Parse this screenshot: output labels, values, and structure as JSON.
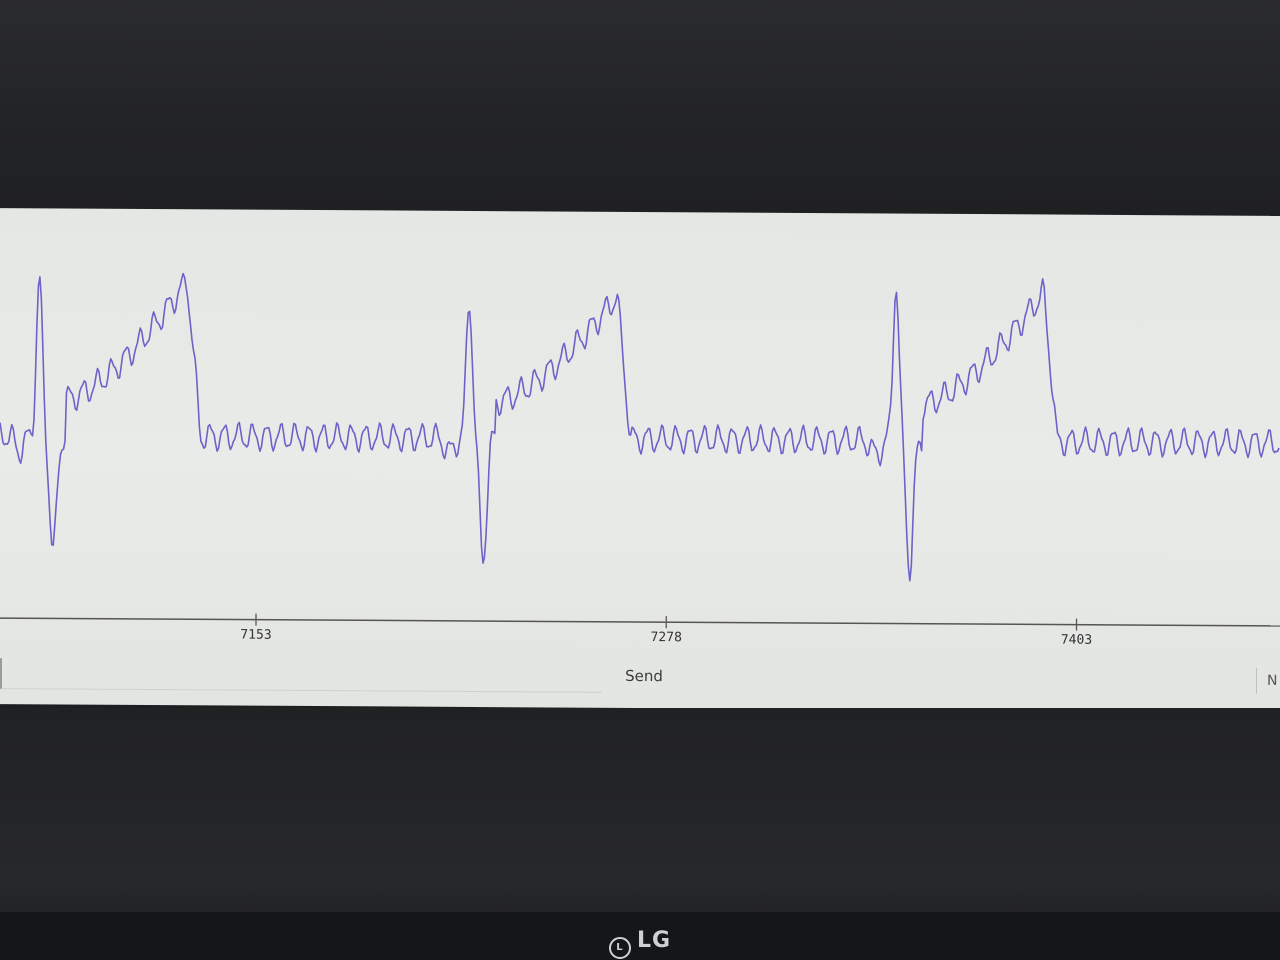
{
  "device": {
    "brand_logo": "LG"
  },
  "serial_plotter": {
    "send_label": "Send",
    "input_value": "",
    "line_ending_label": "N"
  },
  "chart_data": {
    "type": "line",
    "title": "",
    "xlabel": "",
    "ylabel": "",
    "xlim": [
      7075,
      7465
    ],
    "ylim": [
      0,
      100
    ],
    "x_ticks": [
      7153,
      7278,
      7403
    ],
    "grid": false,
    "legend": "none",
    "series": [
      {
        "color": "#6b63c9",
        "beat_x": [
          7087,
          7218,
          7348
        ],
        "beat_peak_y": [
          88,
          84,
          89
        ],
        "beat_trough_y": [
          14,
          13,
          11
        ],
        "twave_peak_y": [
          94,
          90,
          92
        ],
        "baseline_y": 46,
        "noise_amplitude": 3.2
      }
    ]
  }
}
